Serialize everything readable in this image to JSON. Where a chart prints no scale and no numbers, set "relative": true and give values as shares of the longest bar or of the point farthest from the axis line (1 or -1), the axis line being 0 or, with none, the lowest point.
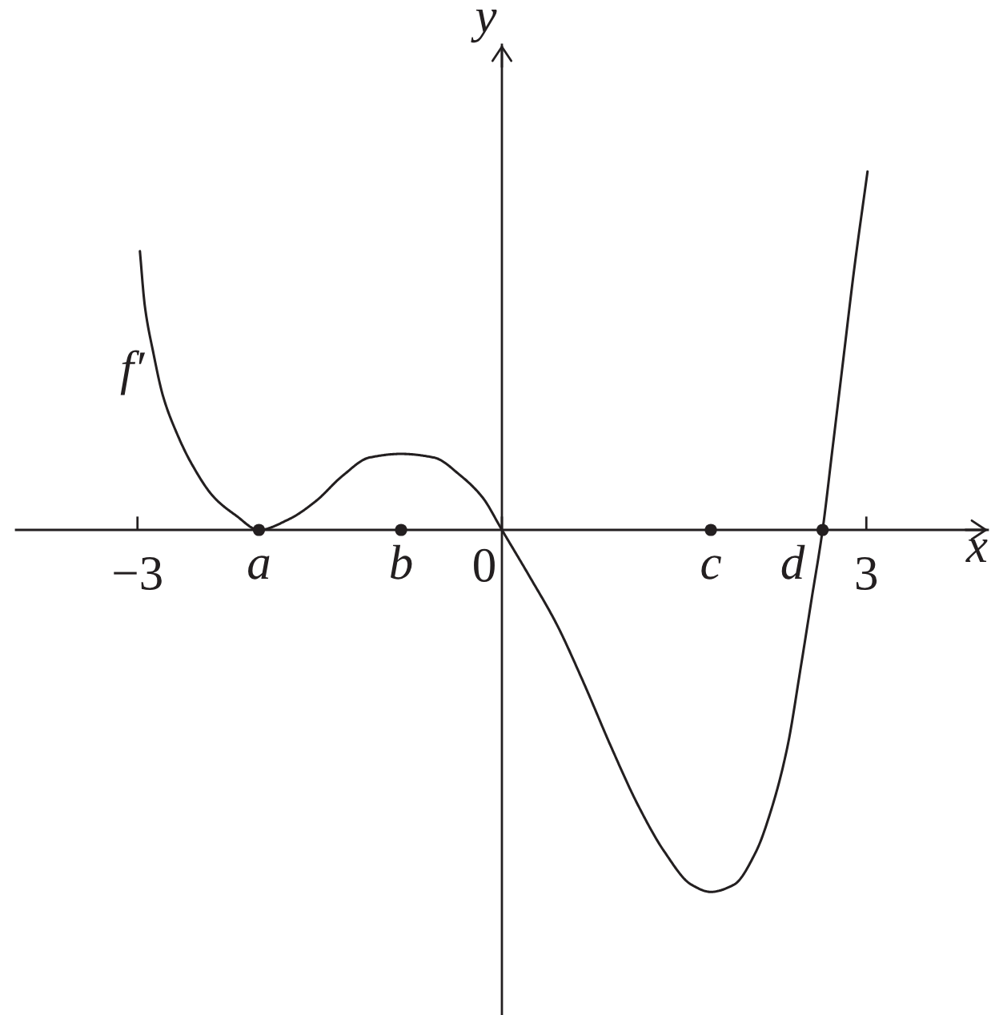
{
  "chart_data": {
    "type": "line",
    "relative": true,
    "xlabel": "x",
    "ylabel": "y",
    "xlim": [
      -4,
      4
    ],
    "xticks": [
      {
        "value": -3,
        "label": "−3"
      },
      0,
      3
    ],
    "series": [
      {
        "name": "f′",
        "color": "#231f20",
        "line_style": "solid",
        "x": [
          -2.98,
          -2.94,
          -2.87,
          -2.79,
          -2.68,
          -2.55,
          -2.37,
          -2.19,
          -2.0,
          -1.75,
          -1.53,
          -1.31,
          -1.09,
          -0.83,
          -0.56,
          -0.34,
          -0.16,
          0,
          0.23,
          0.45,
          0.67,
          0.9,
          1.12,
          1.34,
          1.56,
          1.72,
          1.91,
          2.09,
          2.22,
          2.35,
          2.46,
          2.55,
          2.64,
          2.72,
          2.81,
          2.9,
          3.01
        ],
        "values": [
          0.77,
          0.62,
          0.49,
          0.37,
          0.27,
          0.18,
          0.09,
          0.04,
          0,
          0.03,
          0.08,
          0.15,
          0.2,
          0.21,
          0.2,
          0.15,
          0.09,
          0,
          -0.13,
          -0.26,
          -0.42,
          -0.6,
          -0.76,
          -0.89,
          -0.98,
          -1,
          -0.98,
          -0.89,
          -0.77,
          -0.6,
          -0.38,
          -0.19,
          0,
          0.22,
          0.47,
          0.72,
          0.99
        ]
      },
      {
        "type": "scatter",
        "color": "#231f20",
        "marker": "circle",
        "x": [
          -2.0,
          -0.83,
          1.72,
          2.64
        ],
        "values": [
          0,
          0,
          0,
          0
        ]
      }
    ],
    "annotations": [
      {
        "text": "a",
        "x": -2.0,
        "y": 0
      },
      {
        "text": "b",
        "x": -0.83,
        "y": 0
      },
      {
        "text": "c",
        "x": 1.72,
        "y": 0
      },
      {
        "text": "d",
        "x": 2.64,
        "y": 0
      }
    ]
  }
}
